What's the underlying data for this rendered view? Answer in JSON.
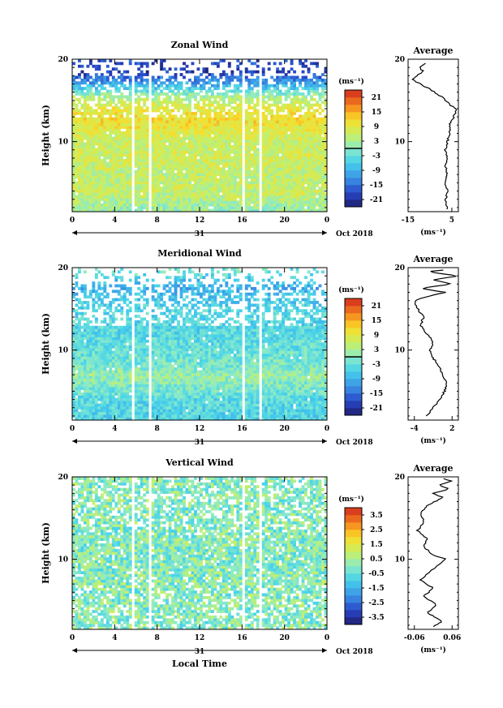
{
  "chart_data": [
    {
      "type": "heatmap",
      "title": "Zonal Wind",
      "ylabel": "Height (km)",
      "xlim": [
        0,
        24
      ],
      "ylim": [
        1.5,
        20
      ],
      "x_ticks": [
        "0",
        "4",
        "8",
        "12",
        "16",
        "20",
        "0"
      ],
      "y_ticks": [
        "10",
        "20"
      ],
      "date_bar": {
        "center_label": "31",
        "right_label": "Oct 2018"
      },
      "colorbar": {
        "unit": "(ms⁻¹)",
        "ticks": [
          "21",
          "15",
          "9",
          "3",
          "-3",
          "-9",
          "-15",
          "-21"
        ],
        "range": [
          -24,
          24
        ]
      },
      "field_profile": [
        [
          2,
          2
        ],
        [
          4,
          6
        ],
        [
          6,
          5
        ],
        [
          8,
          7
        ],
        [
          10,
          6
        ],
        [
          11.5,
          9
        ],
        [
          12.5,
          11
        ],
        [
          14,
          9
        ],
        [
          15.5,
          3
        ],
        [
          17,
          -10
        ],
        [
          18.5,
          -20
        ],
        [
          19.5,
          -18
        ]
      ],
      "data_gaps": [
        [
          3.6,
          3.8
        ],
        [
          5.7,
          5.9
        ],
        [
          7.3,
          7.55
        ],
        [
          15.9,
          16.3
        ],
        [
          17.6,
          17.75
        ]
      ],
      "average": {
        "title": "Average",
        "xlim": [
          -15,
          8
        ],
        "x_ticks": [
          "-15",
          "5"
        ],
        "xlabel": "(ms⁻¹)",
        "y_ticks": [
          "10",
          "20"
        ],
        "profile": [
          [
            1.8,
            3
          ],
          [
            2.5,
            2
          ],
          [
            4,
            3
          ],
          [
            5,
            2
          ],
          [
            6,
            3
          ],
          [
            7,
            2
          ],
          [
            8,
            3
          ],
          [
            9,
            2
          ],
          [
            10,
            3
          ],
          [
            11,
            4
          ],
          [
            12,
            4
          ],
          [
            13,
            6
          ],
          [
            14,
            7
          ],
          [
            14.5,
            4
          ],
          [
            15.5,
            0
          ],
          [
            16.5,
            -6
          ],
          [
            17.5,
            -13
          ],
          [
            18,
            -11
          ],
          [
            18.5,
            -8
          ],
          [
            19,
            -10
          ],
          [
            19.6,
            -6
          ]
        ]
      }
    },
    {
      "type": "heatmap",
      "title": "Meridional Wind",
      "ylabel": "Height (km)",
      "xlim": [
        0,
        24
      ],
      "ylim": [
        1.5,
        20
      ],
      "x_ticks": [
        "0",
        "4",
        "8",
        "12",
        "16",
        "20",
        "0"
      ],
      "y_ticks": [
        "10",
        "20"
      ],
      "date_bar": {
        "center_label": "31",
        "right_label": "Oct 2018"
      },
      "colorbar": {
        "unit": "(ms⁻¹)",
        "ticks": [
          "21",
          "15",
          "9",
          "3",
          "-3",
          "-9",
          "-15",
          "-21"
        ],
        "range": [
          -24,
          24
        ]
      },
      "field_profile": [
        [
          2,
          -5
        ],
        [
          4,
          -4
        ],
        [
          6,
          0
        ],
        [
          7,
          2
        ],
        [
          8,
          -1
        ],
        [
          10,
          -3
        ],
        [
          12,
          -4
        ],
        [
          13,
          -5
        ],
        [
          14,
          -4
        ],
        [
          16,
          -6
        ],
        [
          17.5,
          -9
        ],
        [
          18.5,
          -7
        ],
        [
          19.5,
          -2
        ]
      ],
      "data_gaps": [
        [
          3.6,
          3.8
        ],
        [
          5.7,
          5.9
        ],
        [
          7.3,
          7.55
        ],
        [
          15.9,
          16.3
        ],
        [
          17.6,
          17.75
        ]
      ],
      "average": {
        "title": "Average",
        "xlim": [
          -5,
          3
        ],
        "x_ticks": [
          "-4",
          "2"
        ],
        "xlabel": "(ms⁻¹)",
        "y_ticks": [
          "10",
          "20"
        ],
        "profile": [
          [
            2,
            -2
          ],
          [
            3,
            -1
          ],
          [
            4,
            0
          ],
          [
            5,
            0.8
          ],
          [
            6,
            1.2
          ],
          [
            7,
            0.5
          ],
          [
            8,
            0
          ],
          [
            9,
            -1
          ],
          [
            10,
            -1.5
          ],
          [
            11,
            -1
          ],
          [
            12,
            -2
          ],
          [
            13,
            -3
          ],
          [
            14,
            -2.5
          ],
          [
            15,
            -3.5
          ],
          [
            16,
            -4
          ],
          [
            16.5,
            -2
          ],
          [
            17,
            1
          ],
          [
            17.5,
            -3
          ],
          [
            18,
            2
          ],
          [
            18.5,
            -1
          ],
          [
            19,
            3
          ],
          [
            19.5,
            -2
          ],
          [
            19.8,
            2
          ]
        ]
      }
    },
    {
      "type": "heatmap",
      "title": "Vertical Wind",
      "ylabel": "Height (km)",
      "xlabel": "Local Time",
      "xlim": [
        0,
        24
      ],
      "ylim": [
        1.5,
        20
      ],
      "x_ticks": [
        "0",
        "4",
        "8",
        "12",
        "16",
        "20",
        "0"
      ],
      "y_ticks": [
        "10",
        "20"
      ],
      "date_bar": {
        "center_label": "31",
        "right_label": "Oct 2018"
      },
      "colorbar": {
        "unit": "(ms⁻¹)",
        "ticks": [
          "3.5",
          "2.5",
          "1.5",
          "0.5",
          "-0.5",
          "-1.5",
          "-2.5",
          "-3.5"
        ],
        "range": [
          -4,
          4
        ]
      },
      "field_profile": [
        [
          2,
          0
        ],
        [
          20,
          0
        ]
      ],
      "data_gaps": [
        [
          3.6,
          3.8
        ],
        [
          5.7,
          5.9
        ],
        [
          7.3,
          7.55
        ],
        [
          15.9,
          16.3
        ],
        [
          17.6,
          17.75
        ]
      ],
      "average": {
        "title": "Average",
        "xlim": [
          -0.08,
          0.08
        ],
        "x_ticks": [
          "-0.06",
          "0.06"
        ],
        "xlabel": "(ms⁻¹)",
        "y_ticks": [
          "10",
          "20"
        ],
        "profile": [
          [
            1.8,
            0
          ],
          [
            2.5,
            0.03
          ],
          [
            3.5,
            -0.02
          ],
          [
            4.5,
            0.01
          ],
          [
            5.5,
            -0.03
          ],
          [
            6.5,
            0
          ],
          [
            7.5,
            -0.04
          ],
          [
            8.5,
            -0.01
          ],
          [
            9.5,
            0.02
          ],
          [
            10,
            0.04
          ],
          [
            10.5,
            0
          ],
          [
            11.5,
            -0.03
          ],
          [
            12.5,
            -0.02
          ],
          [
            13.5,
            -0.05
          ],
          [
            14.5,
            -0.03
          ],
          [
            15.5,
            -0.04
          ],
          [
            16.5,
            -0.02
          ],
          [
            17.5,
            0.03
          ],
          [
            18,
            0
          ],
          [
            18.5,
            0.05
          ],
          [
            19,
            0.02
          ],
          [
            19.5,
            0.06
          ],
          [
            19.8,
            0.03
          ]
        ]
      }
    }
  ]
}
